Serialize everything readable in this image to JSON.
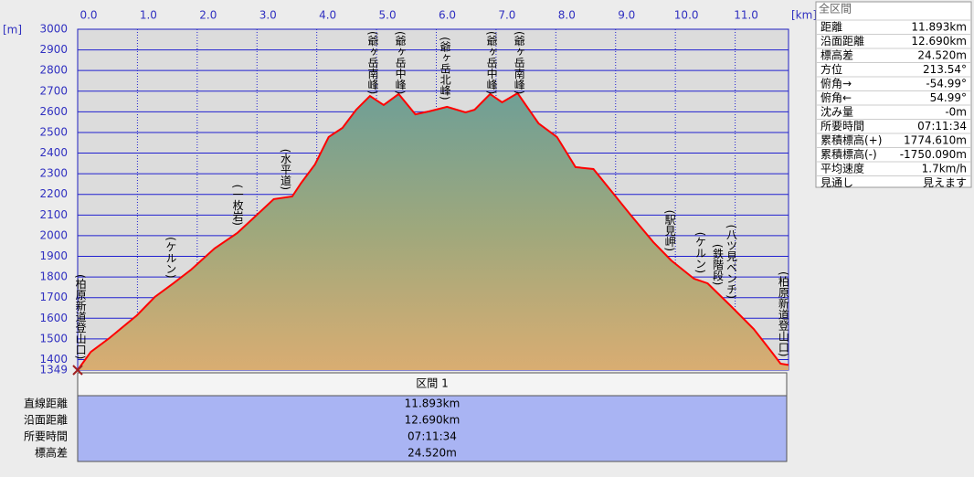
{
  "chart_data": {
    "type": "area",
    "x_unit": "[km]",
    "y_unit": "[m]",
    "x": [
      0,
      0.22,
      0.53,
      0.99,
      1.29,
      1.6,
      1.9,
      2.29,
      2.67,
      2.97,
      3.28,
      3.59,
      3.74,
      3.97,
      4.2,
      4.43,
      4.66,
      4.89,
      5.12,
      5.37,
      5.65,
      5.88,
      6.18,
      6.49,
      6.64,
      6.9,
      7.1,
      7.36,
      7.71,
      8.02,
      8.33,
      8.63,
      8.94,
      9.25,
      9.63,
      9.93,
      10.31,
      10.54,
      10.93,
      11.31,
      11.61,
      11.76,
      11.893
    ],
    "values": [
      1349,
      1437,
      1504,
      1614,
      1703,
      1769,
      1836,
      1938,
      2013,
      2093,
      2177,
      2190,
      2256,
      2345,
      2478,
      2522,
      2610,
      2677,
      2633,
      2686,
      2588,
      2602,
      2624,
      2597,
      2610,
      2686,
      2646,
      2690,
      2544,
      2478,
      2332,
      2323,
      2212,
      2101,
      1969,
      1880,
      1792,
      1769,
      1659,
      1548,
      1437,
      1380,
      1374
    ],
    "color": "#ff0000",
    "xlim": [
      0,
      11.893
    ],
    "xticks": [
      {
        "value": 0,
        "label": "0.0"
      },
      {
        "value": 1,
        "label": "1.0"
      },
      {
        "value": 2,
        "label": "2.0"
      },
      {
        "value": 3,
        "label": "3.0"
      },
      {
        "value": 4,
        "label": "4.0"
      },
      {
        "value": 5,
        "label": "5.0"
      },
      {
        "value": 6,
        "label": "6.0"
      },
      {
        "value": 7,
        "label": "7.0"
      },
      {
        "value": 8,
        "label": "8.0"
      },
      {
        "value": 9,
        "label": "9.0"
      },
      {
        "value": 10,
        "label": "10.0"
      },
      {
        "value": 11,
        "label": "11.0"
      }
    ],
    "ylim": [
      1349,
      3000
    ],
    "yticks": [
      1349,
      1400,
      1500,
      1600,
      1700,
      1800,
      1900,
      2000,
      2100,
      2200,
      2300,
      2400,
      2500,
      2600,
      2700,
      2800,
      2900,
      3000
    ],
    "grid": true,
    "annotations": [
      {
        "text": "(柏原新道登山口)",
        "x": 0.04
      },
      {
        "text": "(ケルン)",
        "x": 1.55
      },
      {
        "text": "(一枚岩)",
        "x": 2.67
      },
      {
        "text": "(水平道)",
        "x": 3.47
      },
      {
        "text": "(爺ヶ岳南峰)",
        "x": 4.93
      },
      {
        "text": "(爺ヶ岳中峰)",
        "x": 5.39
      },
      {
        "text": "(爺ヶ岳北峰)",
        "x": 6.14
      },
      {
        "text": "(爺ヶ岳中峰)",
        "x": 6.92
      },
      {
        "text": "(爺ヶ岳南峰)",
        "x": 7.38
      },
      {
        "text": "(駅見岬)",
        "x": 9.9
      },
      {
        "text": "(ケルン)",
        "x": 10.41
      },
      {
        "text": "(鉄階段)",
        "x": 10.7
      },
      {
        "text": "(八ツ見ベンチ)",
        "x": 10.93
      },
      {
        "text": "(柏原新道登山口)",
        "x": 11.8
      }
    ]
  },
  "summary": {
    "title": "全区間",
    "rows": [
      [
        "距離",
        "11.893km"
      ],
      [
        "沿面距離",
        "12.690km"
      ],
      [
        "標高差",
        "24.520m"
      ],
      [
        "方位",
        "213.54°"
      ],
      [
        "俯角→",
        "-54.99°"
      ],
      [
        "俯角←",
        "54.99°"
      ],
      [
        "沈み量",
        "-0m"
      ],
      [
        "所要時間",
        "07:11:34"
      ],
      [
        "累積標高(+)",
        "1774.610m"
      ],
      [
        "累積標高(-)",
        "-1750.090m"
      ],
      [
        "平均速度",
        "1.7km/h"
      ],
      [
        "見通し",
        "見えます"
      ]
    ]
  },
  "section_table": {
    "header": "区間 1",
    "rows": [
      [
        "直線距離",
        "11.893km"
      ],
      [
        "沿面距離",
        "12.690km"
      ],
      [
        "所要時間",
        "07:11:34"
      ],
      [
        "標高差",
        "24.520m"
      ]
    ]
  }
}
